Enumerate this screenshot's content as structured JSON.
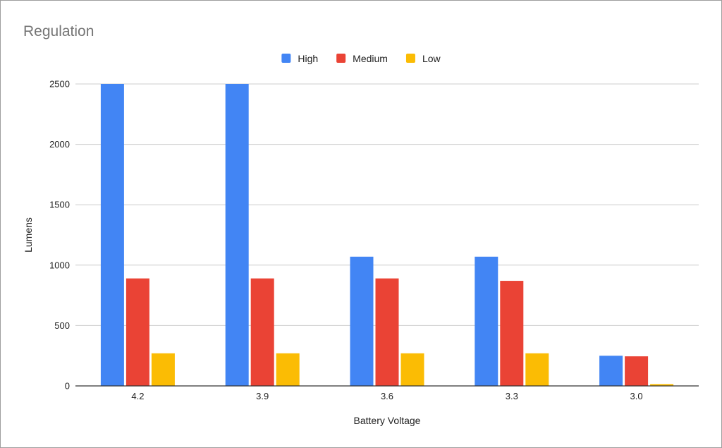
{
  "chart_data": {
    "type": "bar",
    "title": "Regulation",
    "xlabel": "Battery Voltage",
    "ylabel": "Lumens",
    "categories": [
      "4.2",
      "3.9",
      "3.6",
      "3.3",
      "3.0"
    ],
    "series": [
      {
        "name": "High",
        "color": "#4285f4",
        "values": [
          2500,
          2500,
          1070,
          1070,
          250
        ]
      },
      {
        "name": "Medium",
        "color": "#ea4335",
        "values": [
          890,
          890,
          890,
          870,
          245
        ]
      },
      {
        "name": "Low",
        "color": "#fbbc04",
        "values": [
          270,
          270,
          270,
          270,
          15
        ]
      }
    ],
    "ylim": [
      0,
      2500
    ],
    "yticks": [
      0,
      500,
      1000,
      1500,
      2000,
      2500
    ],
    "grid": true,
    "legend_position": "top-center"
  }
}
